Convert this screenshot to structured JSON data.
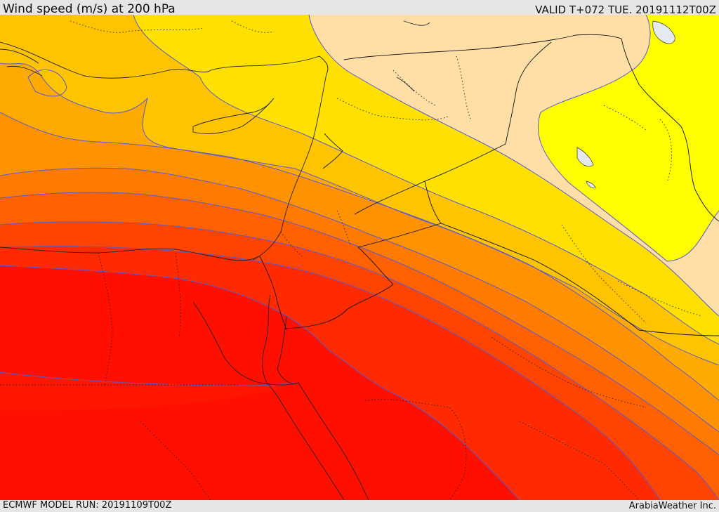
{
  "header": {
    "title": "Wind speed (m/s) at 200 hPa",
    "valid": "VALID T+072 TUE. 20191112T00Z"
  },
  "footer": {
    "model_run": "ECMWF MODEL RUN: 20191109T00Z",
    "credit": "ArabiaWeather Inc."
  },
  "map": {
    "variable": "wind speed",
    "level": "200 hPa",
    "palette": {
      "band_1": "#ffdfa6",
      "band_2": "#ffff00",
      "band_3": "#ffe000",
      "band_4": "#ffc400",
      "band_5": "#ffaa00",
      "band_6": "#ff9200",
      "band_7": "#ff7a00",
      "band_8": "#ff6000",
      "band_9": "#ff4400",
      "band_10": "#ff2a00",
      "band_11": "#ff0f00",
      "contour_line": "#5a5ad0",
      "border_line": "#000000",
      "water": "#e4eaf0"
    }
  }
}
